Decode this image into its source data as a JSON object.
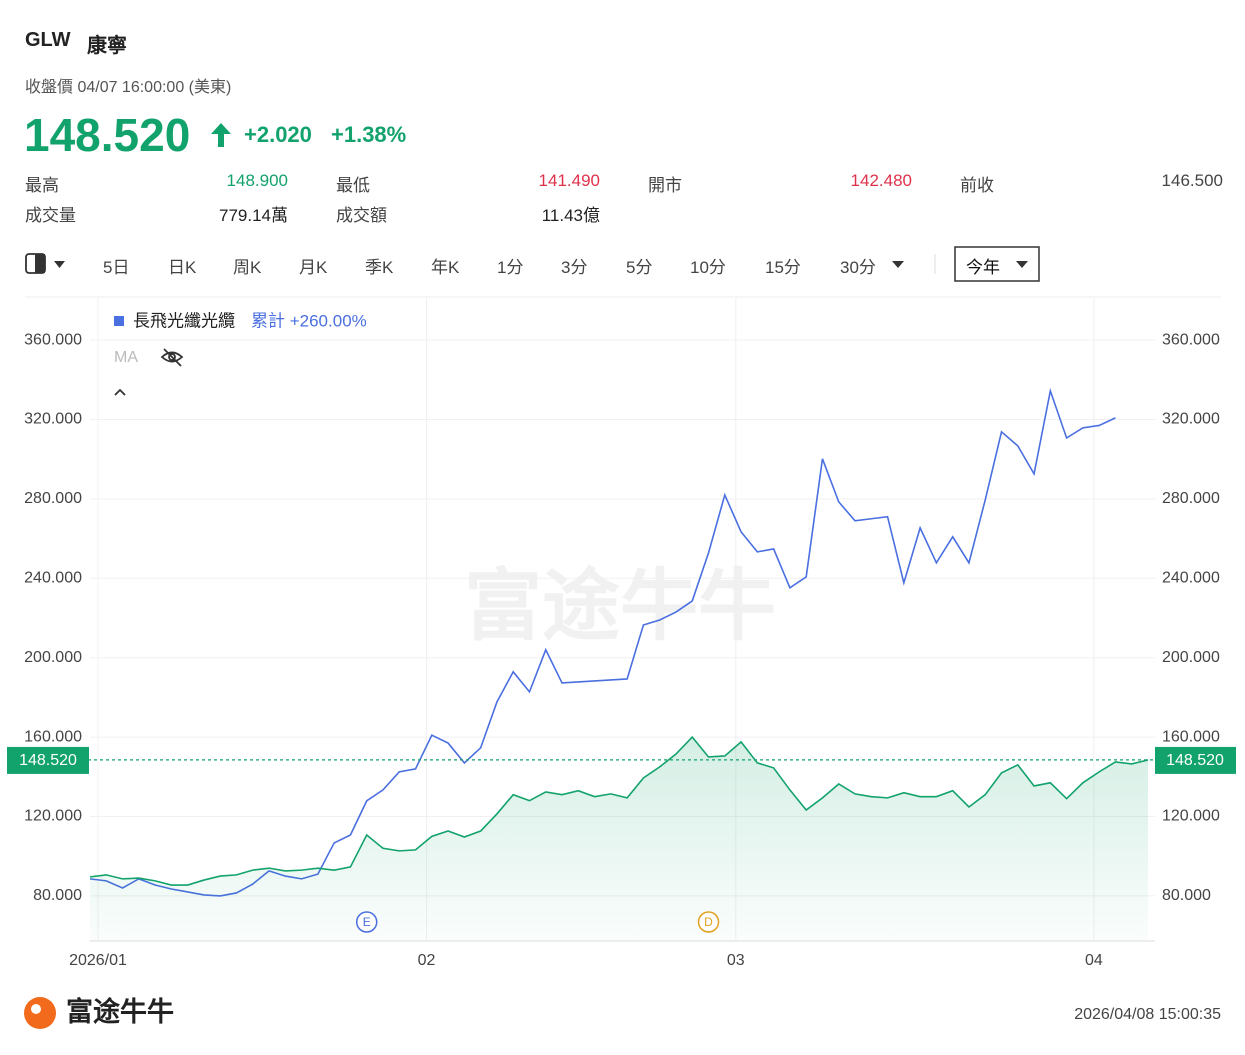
{
  "header": {
    "symbol": "GLW",
    "name": "康寧",
    "subtitle": "收盤價 04/07 16:00:00 (美東)",
    "price": "148.520",
    "change": "+2.020",
    "change_pct": "+1.38%",
    "stats": [
      {
        "label": "最高",
        "value": "148.900"
      },
      {
        "label": "最低",
        "value": "141.490"
      },
      {
        "label": "開市",
        "value": "142.480"
      },
      {
        "label": "前收",
        "value": "146.500"
      },
      {
        "label": "成交量",
        "value": "779.14萬"
      },
      {
        "label": "成交額",
        "value": "11.43億"
      }
    ]
  },
  "toolbar": {
    "periods": [
      "5日",
      "日K",
      "周K",
      "月K",
      "季K",
      "年K",
      "1分",
      "3分",
      "5分",
      "10分",
      "15分",
      "30分"
    ],
    "range": "今年"
  },
  "chart_data": {
    "type": "line",
    "legend_cumulative": "累計 +260.00%",
    "ma_label": "MA",
    "watermark": "富途牛牛",
    "categories": [
      "2026/01",
      null,
      null,
      null,
      null,
      null,
      null,
      null,
      null,
      null,
      null,
      null,
      null,
      null,
      null,
      null,
      null,
      null,
      null,
      null,
      "02",
      null,
      null,
      null,
      null,
      null,
      null,
      null,
      null,
      null,
      null,
      null,
      null,
      null,
      null,
      null,
      null,
      null,
      null,
      "03",
      null,
      null,
      null,
      null,
      null,
      null,
      null,
      null,
      null,
      null,
      null,
      null,
      null,
      null,
      null,
      null,
      null,
      null,
      null,
      null,
      null,
      "04",
      null,
      null,
      null,
      null
    ],
    "series": [
      {
        "name": "長飛光纖光纜",
        "color": "#4a6fe0",
        "values": [
          88.6,
          87.6,
          84,
          88.6,
          85.5,
          83.5,
          82,
          80.5,
          80,
          81.5,
          86,
          92.6,
          90,
          88.6,
          91,
          106.7,
          110.7,
          127.9,
          133.4,
          142.5,
          144,
          161,
          157,
          147,
          154.6,
          177.7,
          192.9,
          182.8,
          204,
          187.3,
          187.8,
          188.3,
          188.8,
          189.3,
          216.5,
          219,
          223,
          228.6,
          252.8,
          282,
          263.4,
          253.3,
          254.8,
          235.2,
          240.7,
          300.2,
          278.5,
          269,
          270,
          271,
          237.7,
          265.4,
          247.8,
          260.9,
          247.8,
          279.5,
          313.8,
          306.7,
          292.6,
          334.4,
          310.7,
          315.8,
          317,
          320.8,
          null,
          null
        ]
      },
      {
        "name": "GLW",
        "color": "#12a26b",
        "values": [
          89.6,
          90.6,
          88.6,
          89,
          87.6,
          85.5,
          85.5,
          88,
          90,
          90.6,
          93,
          94,
          92.6,
          93,
          94,
          93,
          94.6,
          110.7,
          104,
          102.7,
          103.2,
          110,
          112.7,
          109.7,
          112.7,
          121.3,
          131,
          128,
          132.4,
          131,
          133,
          130,
          131.4,
          129.4,
          139.4,
          145,
          151.5,
          160,
          150,
          150.5,
          157.6,
          147,
          144.5,
          133.4,
          123.3,
          129.4,
          136.4,
          131.4,
          130,
          129.4,
          132,
          130,
          130,
          133,
          124.8,
          131,
          142,
          146,
          135.4,
          137,
          129,
          137,
          142.5,
          147.5,
          146.5,
          148.52
        ]
      }
    ],
    "current_line": {
      "value": 148.52,
      "label": "148.520"
    },
    "events": [
      {
        "label": "E",
        "category": 17
      },
      {
        "label": "D",
        "category": 38
      }
    ],
    "ylim": [
      57.3,
      381.2
    ],
    "yticks": [
      {
        "value": 80,
        "label": "80.000"
      },
      {
        "value": 120,
        "label": "120.000"
      },
      {
        "value": 160,
        "label": "160.000"
      },
      {
        "value": 200,
        "label": "200.000"
      },
      {
        "value": 240,
        "label": "240.000"
      },
      {
        "value": 280,
        "label": "280.000"
      },
      {
        "value": 320,
        "label": "320.000"
      },
      {
        "value": 360,
        "label": "360.000"
      }
    ],
    "grid": true
  },
  "footer": {
    "brand": "富途牛牛",
    "timestamp": "2026/04/08 15:00:35"
  }
}
